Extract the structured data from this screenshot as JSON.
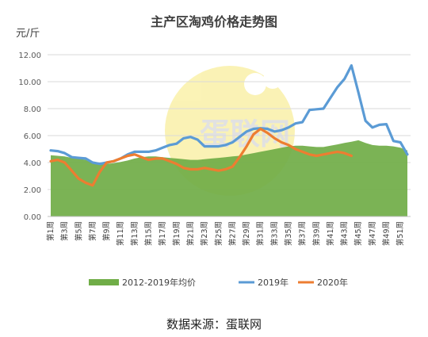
{
  "chart_data": {
    "type": "area",
    "title": "主产区淘鸡价格走势图",
    "ylabel": "元/斤",
    "ylim": [
      0,
      12
    ],
    "yticks": [
      "0.00",
      "2.00",
      "4.00",
      "6.00",
      "8.00",
      "10.00",
      "12.00"
    ],
    "x_tick_labels": [
      "第1周",
      "第3周",
      "第5周",
      "第7周",
      "第9周",
      "第11周",
      "第13周",
      "第15周",
      "第17周",
      "第19周",
      "第21周",
      "第23周",
      "第25周",
      "第27周",
      "第29周",
      "第31周",
      "第33周",
      "第35周",
      "第37周",
      "第39周",
      "第41周",
      "第43周",
      "第45周",
      "第47周",
      "第49周",
      "第51周"
    ],
    "weeks": 52,
    "series": [
      {
        "name": "2012-2019年均价",
        "type": "area",
        "color": "#70ad47",
        "values": [
          4.55,
          4.5,
          4.45,
          4.35,
          4.3,
          4.2,
          4.05,
          3.95,
          3.9,
          3.95,
          4.05,
          4.15,
          4.3,
          4.4,
          4.45,
          4.45,
          4.4,
          4.35,
          4.3,
          4.25,
          4.2,
          4.2,
          4.25,
          4.3,
          4.35,
          4.4,
          4.45,
          4.5,
          4.6,
          4.7,
          4.8,
          4.9,
          5.0,
          5.1,
          5.2,
          5.25,
          5.25,
          5.2,
          5.15,
          5.15,
          5.25,
          5.35,
          5.45,
          5.55,
          5.65,
          5.45,
          5.3,
          5.25,
          5.25,
          5.2,
          5.1,
          4.9
        ]
      },
      {
        "name": "2019年",
        "type": "line",
        "color": "#5b9bd5",
        "values": [
          4.9,
          4.85,
          4.7,
          4.4,
          4.35,
          4.3,
          4.0,
          3.9,
          4.0,
          4.1,
          4.3,
          4.6,
          4.8,
          4.8,
          4.8,
          4.9,
          5.1,
          5.3,
          5.4,
          5.8,
          5.9,
          5.7,
          5.2,
          5.2,
          5.2,
          5.3,
          5.5,
          5.9,
          6.3,
          6.5,
          6.55,
          6.5,
          6.3,
          6.4,
          6.6,
          6.9,
          7.0,
          7.9,
          7.95,
          8.0,
          8.8,
          9.6,
          10.2,
          11.2,
          9.2,
          7.1,
          6.6,
          6.8,
          6.85,
          5.6,
          5.5,
          4.6
        ]
      },
      {
        "name": "2020年",
        "type": "line",
        "color": "#ed7d31",
        "values": [
          4.1,
          4.2,
          4.0,
          3.4,
          2.8,
          2.5,
          2.3,
          3.3,
          4.0,
          4.1,
          4.3,
          4.5,
          4.6,
          4.4,
          4.2,
          4.3,
          4.3,
          4.1,
          3.9,
          3.6,
          3.5,
          3.5,
          3.6,
          3.5,
          3.4,
          3.5,
          3.7,
          4.4,
          5.2,
          6.1,
          6.5,
          6.2,
          5.8,
          5.5,
          5.3,
          5.0,
          4.8,
          4.6,
          4.5,
          4.6,
          4.7,
          4.8,
          4.7,
          4.5
        ]
      }
    ],
    "legend_position": "bottom",
    "grid": "horizontal",
    "source_text": "数据来源：蛋联网",
    "watermark_text": "蛋联网"
  }
}
